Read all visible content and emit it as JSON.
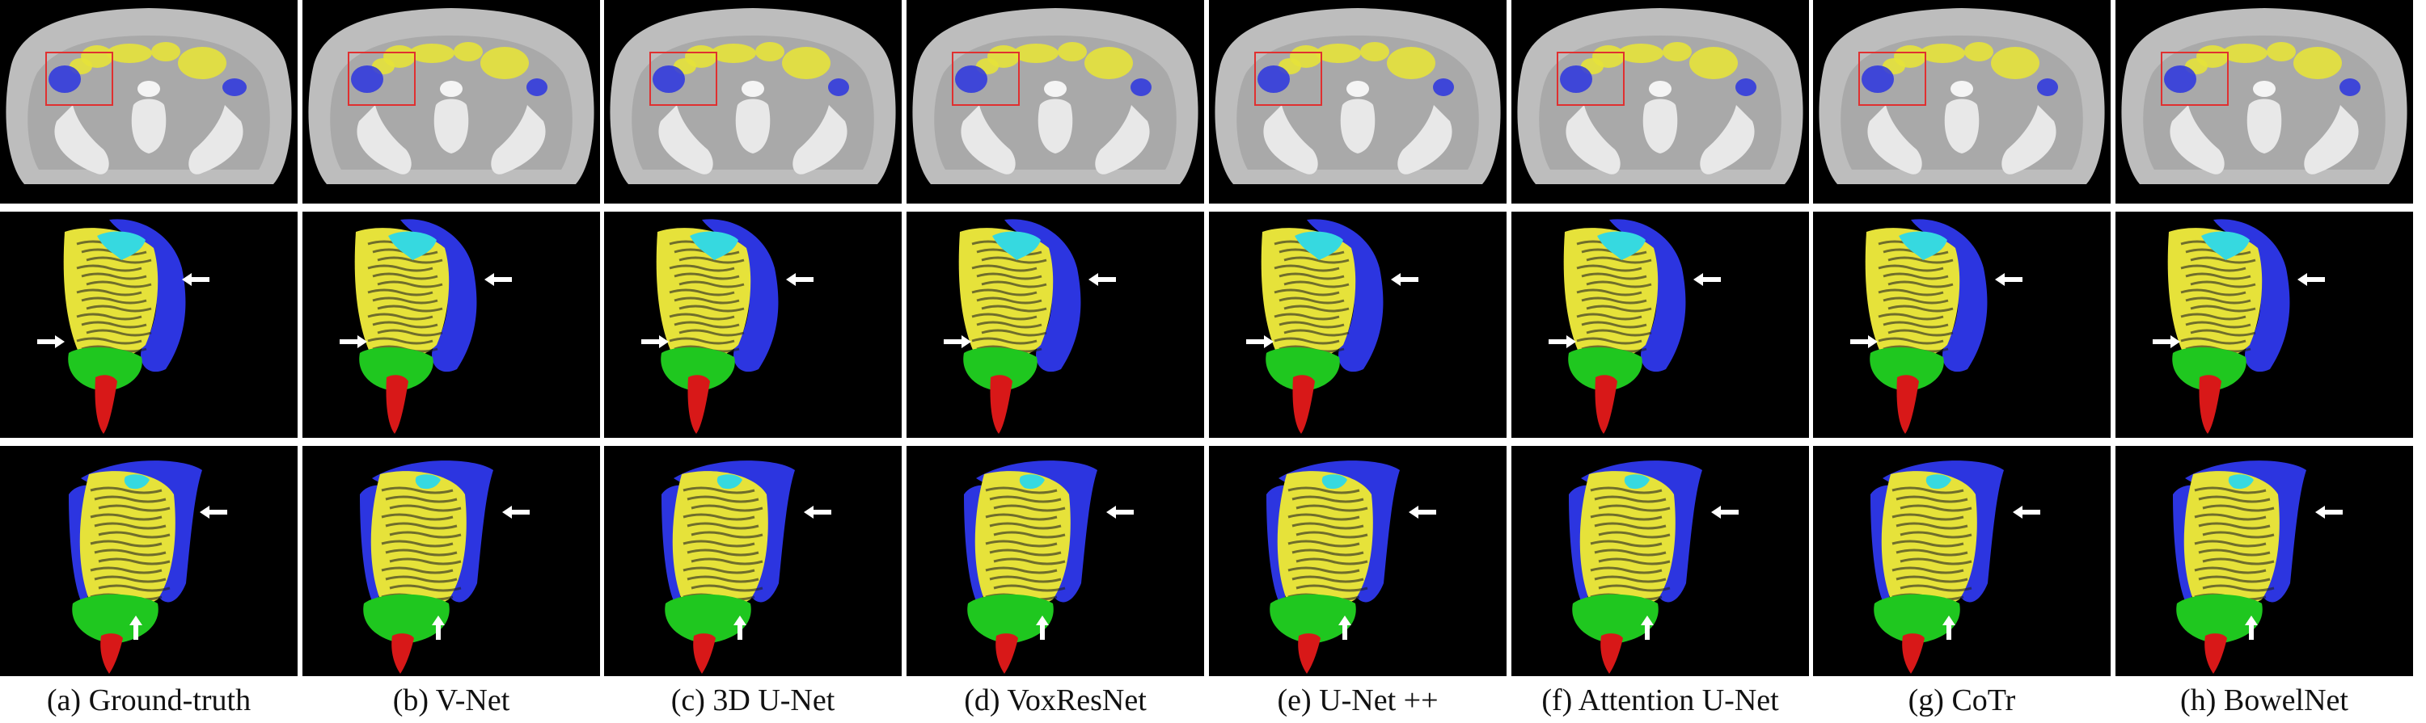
{
  "figure": {
    "columns": [
      {
        "id": "a",
        "caption": "(a) Ground-truth"
      },
      {
        "id": "b",
        "caption": "(b) V-Net"
      },
      {
        "id": "c",
        "caption": "(c) 3D U-Net"
      },
      {
        "id": "d",
        "caption": "(d) VoxResNet"
      },
      {
        "id": "e",
        "caption": "(e) U-Net ++"
      },
      {
        "id": "f",
        "caption": "(f) Attention U-Net"
      },
      {
        "id": "g",
        "caption": "(g) CoTr"
      },
      {
        "id": "h",
        "caption": "(h) BowelNet"
      }
    ],
    "rows": [
      "axial-ct-slice",
      "3d-render-front",
      "3d-render-back"
    ],
    "colors": {
      "body": "#bdbdbd",
      "bone": "#e8e8e8",
      "small_bowel_yellow": "#e6e23a",
      "colon_blue": "#2c35e0",
      "duodenum_cyan": "#36d9e0",
      "sigmoid_green": "#1fc71f",
      "rectum_red": "#d81818",
      "roi_box": "#e03030",
      "arrow": "#ffffff"
    }
  }
}
